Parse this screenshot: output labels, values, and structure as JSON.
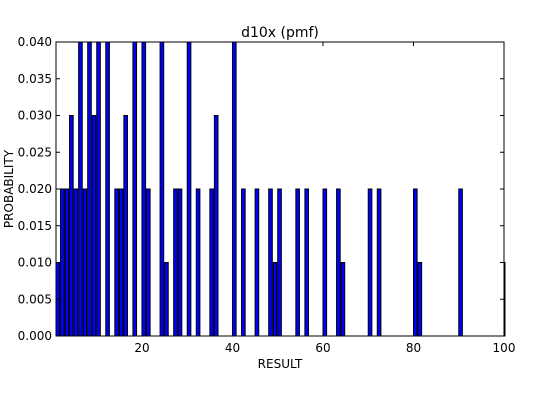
{
  "chart_data": {
    "type": "bar",
    "title": "d10x (pmf)",
    "xlabel": "RESULT",
    "ylabel": "PROBABILITY",
    "xlim": [
      1,
      100
    ],
    "ylim": [
      0,
      0.04
    ],
    "x_ticks": [
      20,
      40,
      60,
      80,
      100
    ],
    "y_ticks": [
      0.0,
      0.005,
      0.01,
      0.015,
      0.02,
      0.025,
      0.03,
      0.035,
      0.04
    ],
    "x_tick_labels": [
      "20",
      "40",
      "60",
      "80",
      "100"
    ],
    "y_tick_labels": [
      "0.000",
      "0.005",
      "0.010",
      "0.015",
      "0.020",
      "0.025",
      "0.030",
      "0.035",
      "0.040"
    ],
    "grid": false,
    "bar_color": "#0000ff",
    "points": [
      {
        "x": 1,
        "y": 0.01
      },
      {
        "x": 2,
        "y": 0.02
      },
      {
        "x": 3,
        "y": 0.02
      },
      {
        "x": 4,
        "y": 0.03
      },
      {
        "x": 5,
        "y": 0.02
      },
      {
        "x": 6,
        "y": 0.04
      },
      {
        "x": 7,
        "y": 0.02
      },
      {
        "x": 8,
        "y": 0.04
      },
      {
        "x": 9,
        "y": 0.03
      },
      {
        "x": 10,
        "y": 0.04
      },
      {
        "x": 12,
        "y": 0.04
      },
      {
        "x": 14,
        "y": 0.02
      },
      {
        "x": 15,
        "y": 0.02
      },
      {
        "x": 16,
        "y": 0.03
      },
      {
        "x": 18,
        "y": 0.04
      },
      {
        "x": 20,
        "y": 0.04
      },
      {
        "x": 21,
        "y": 0.02
      },
      {
        "x": 24,
        "y": 0.04
      },
      {
        "x": 25,
        "y": 0.01
      },
      {
        "x": 27,
        "y": 0.02
      },
      {
        "x": 28,
        "y": 0.02
      },
      {
        "x": 30,
        "y": 0.04
      },
      {
        "x": 32,
        "y": 0.02
      },
      {
        "x": 35,
        "y": 0.02
      },
      {
        "x": 36,
        "y": 0.03
      },
      {
        "x": 40,
        "y": 0.04
      },
      {
        "x": 42,
        "y": 0.02
      },
      {
        "x": 45,
        "y": 0.02
      },
      {
        "x": 48,
        "y": 0.02
      },
      {
        "x": 49,
        "y": 0.01
      },
      {
        "x": 50,
        "y": 0.02
      },
      {
        "x": 54,
        "y": 0.02
      },
      {
        "x": 56,
        "y": 0.02
      },
      {
        "x": 60,
        "y": 0.02
      },
      {
        "x": 63,
        "y": 0.02
      },
      {
        "x": 64,
        "y": 0.01
      },
      {
        "x": 70,
        "y": 0.02
      },
      {
        "x": 72,
        "y": 0.02
      },
      {
        "x": 80,
        "y": 0.02
      },
      {
        "x": 81,
        "y": 0.01
      },
      {
        "x": 90,
        "y": 0.02
      },
      {
        "x": 100,
        "y": 0.01
      }
    ]
  }
}
